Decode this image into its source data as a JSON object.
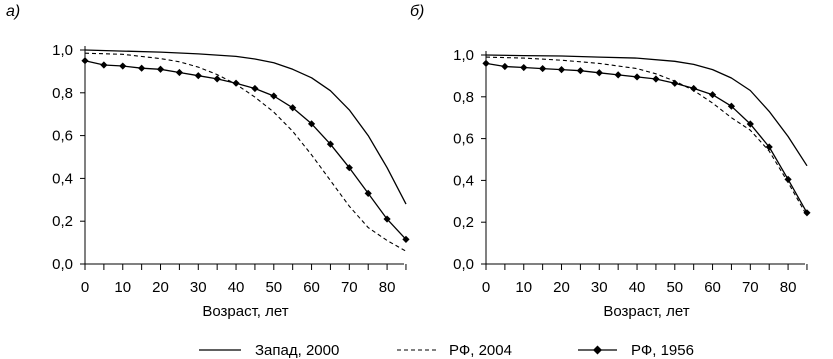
{
  "legend": [
    {
      "series": "Запад, 2000",
      "style": "solid"
    },
    {
      "series": "РФ, 2004",
      "style": "dashed"
    },
    {
      "series": "РФ, 1956",
      "style": "solid-diamond"
    }
  ],
  "chart_data": [
    {
      "type": "line",
      "panel_label": "а)",
      "xlabel": "Возраст, лет",
      "ylabel": "",
      "xlim": [
        0,
        85
      ],
      "ylim": [
        0,
        1
      ],
      "x_ticks": [
        0,
        10,
        20,
        30,
        40,
        50,
        60,
        70,
        80
      ],
      "x_tick_labels": [
        "0",
        "10",
        "20",
        "30",
        "40",
        "50",
        "60",
        "70",
        "80"
      ],
      "y_ticks": [
        0,
        0.2,
        0.4,
        0.6,
        0.8,
        1.0
      ],
      "y_tick_labels": [
        "0,0",
        "0,2",
        "0,4",
        "0,6",
        "0,8",
        "1,0"
      ],
      "grid": false,
      "series": [
        {
          "name": "Запад, 2000",
          "style": "solid",
          "x": [
            0,
            10,
            20,
            30,
            40,
            45,
            50,
            55,
            60,
            65,
            70,
            75,
            80,
            85
          ],
          "y": [
            1.0,
            0.995,
            0.99,
            0.982,
            0.97,
            0.958,
            0.94,
            0.91,
            0.87,
            0.81,
            0.72,
            0.6,
            0.45,
            0.28
          ]
        },
        {
          "name": "РФ, 2004",
          "style": "dashed",
          "x": [
            0,
            10,
            20,
            25,
            30,
            35,
            40,
            45,
            50,
            55,
            60,
            65,
            70,
            75,
            80,
            85
          ],
          "y": [
            0.985,
            0.98,
            0.96,
            0.945,
            0.92,
            0.885,
            0.84,
            0.78,
            0.71,
            0.62,
            0.51,
            0.39,
            0.27,
            0.17,
            0.11,
            0.06
          ]
        },
        {
          "name": "РФ, 1956",
          "style": "solid-diamond",
          "x": [
            0,
            5,
            10,
            15,
            20,
            25,
            30,
            35,
            40,
            45,
            50,
            55,
            60,
            65,
            70,
            75,
            80,
            85
          ],
          "y": [
            0.95,
            0.93,
            0.925,
            0.915,
            0.91,
            0.895,
            0.88,
            0.865,
            0.845,
            0.82,
            0.785,
            0.73,
            0.655,
            0.56,
            0.45,
            0.33,
            0.21,
            0.115
          ]
        }
      ]
    },
    {
      "type": "line",
      "panel_label": "б)",
      "xlabel": "Возраст, лет",
      "ylabel": "",
      "xlim": [
        0,
        85
      ],
      "ylim": [
        0,
        1
      ],
      "x_ticks": [
        0,
        10,
        20,
        30,
        40,
        50,
        60,
        70,
        80
      ],
      "x_tick_labels": [
        "0",
        "10",
        "20",
        "30",
        "40",
        "50",
        "60",
        "70",
        "80"
      ],
      "y_ticks": [
        0,
        0.2,
        0.4,
        0.6,
        0.8,
        1.0
      ],
      "y_tick_labels": [
        "0,0",
        "0,2",
        "0,4",
        "0,6",
        "0,8",
        "1,0"
      ],
      "grid": false,
      "series": [
        {
          "name": "Запад, 2000",
          "style": "solid",
          "x": [
            0,
            10,
            20,
            30,
            40,
            50,
            55,
            60,
            65,
            70,
            75,
            80,
            85
          ],
          "y": [
            1.0,
            0.997,
            0.995,
            0.99,
            0.985,
            0.97,
            0.955,
            0.93,
            0.89,
            0.83,
            0.73,
            0.61,
            0.47
          ]
        },
        {
          "name": "РФ, 2004",
          "style": "dashed",
          "x": [
            0,
            10,
            20,
            30,
            40,
            45,
            50,
            55,
            60,
            65,
            70,
            75,
            80,
            85
          ],
          "y": [
            0.99,
            0.985,
            0.975,
            0.96,
            0.935,
            0.91,
            0.875,
            0.83,
            0.77,
            0.7,
            0.64,
            0.54,
            0.39,
            0.23
          ]
        },
        {
          "name": "РФ, 1956",
          "style": "solid-diamond",
          "x": [
            0,
            5,
            10,
            15,
            20,
            25,
            30,
            35,
            40,
            45,
            50,
            55,
            60,
            65,
            70,
            75,
            80,
            85
          ],
          "y": [
            0.96,
            0.945,
            0.94,
            0.935,
            0.93,
            0.925,
            0.915,
            0.905,
            0.895,
            0.885,
            0.865,
            0.84,
            0.81,
            0.755,
            0.67,
            0.56,
            0.405,
            0.245
          ]
        }
      ]
    }
  ]
}
